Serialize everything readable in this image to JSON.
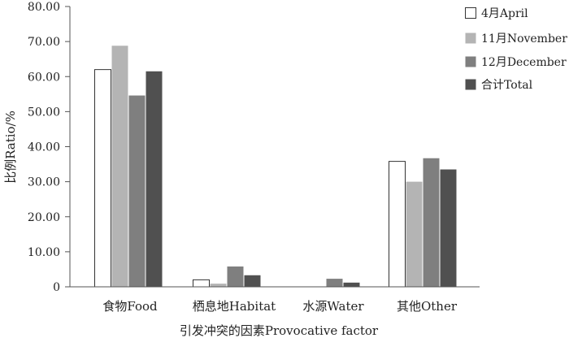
{
  "chart_data": {
    "type": "bar",
    "title": "",
    "xlabel": "引发冲突的因素Provocative factor",
    "ylabel": "比例Ratio/%",
    "ylim": [
      0,
      80
    ],
    "y_ticks": [
      "0",
      "10.00",
      "20.00",
      "30.00",
      "40.00",
      "50.00",
      "60.00",
      "70.00",
      "80.00"
    ],
    "categories": [
      "食物Food",
      "栖息地Habitat",
      "水源Water",
      "其他Other"
    ],
    "series": [
      {
        "name": "4月April",
        "color": "#ffffff",
        "values": [
          62.0,
          2.0,
          0.0,
          35.8
        ]
      },
      {
        "name": "11月November",
        "color": "#b4b4b4",
        "values": [
          68.8,
          0.9,
          0.0,
          30.0
        ]
      },
      {
        "name": "12月December",
        "color": "#7f7f7f",
        "values": [
          54.6,
          5.8,
          2.3,
          36.7
        ]
      },
      {
        "name": "合计Total",
        "color": "#505050",
        "values": [
          61.5,
          3.3,
          1.2,
          33.5
        ]
      }
    ],
    "legend_position": "top-right",
    "grid": false
  }
}
